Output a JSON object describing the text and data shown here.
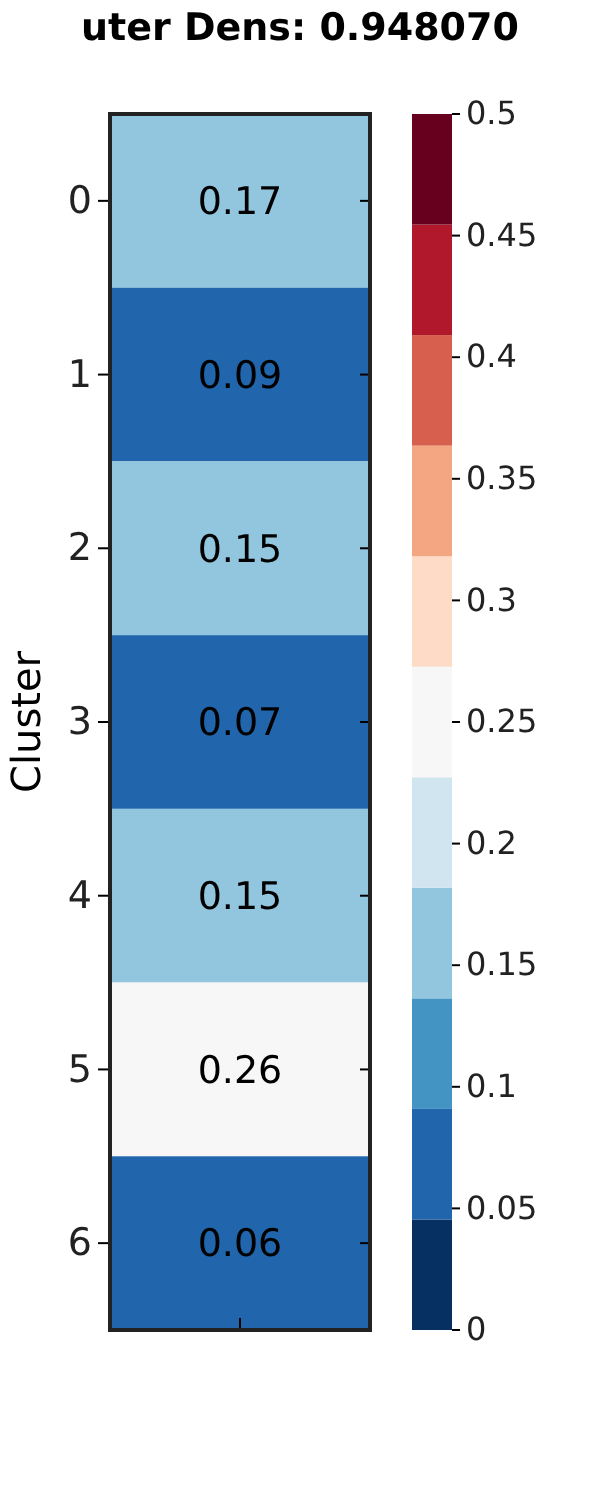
{
  "chart_data": {
    "type": "heatmap",
    "title": "uter Dens: 0.948070",
    "ylabel": "Cluster",
    "categories": [
      null
    ],
    "y_categories": [
      "0",
      "1",
      "2",
      "3",
      "4",
      "5",
      "6"
    ],
    "cells": [
      [
        0.17
      ],
      [
        0.09
      ],
      [
        0.15
      ],
      [
        0.07
      ],
      [
        0.15
      ],
      [
        0.26
      ],
      [
        0.06
      ]
    ],
    "data_labels": true,
    "colors": [
      "#053061",
      "#2166ac",
      "#4393c3",
      "#92c5de",
      "#d1e5f0",
      "#f7f7f7",
      "#fddbc7",
      "#f4a582",
      "#d6604d",
      "#b2182b",
      "#67001f"
    ],
    "clim": [
      0,
      0.5
    ],
    "cticks": [
      0,
      0.05,
      0.1,
      0.15,
      0.2,
      0.25,
      0.3,
      0.35,
      0.4,
      0.45,
      0.5
    ]
  }
}
